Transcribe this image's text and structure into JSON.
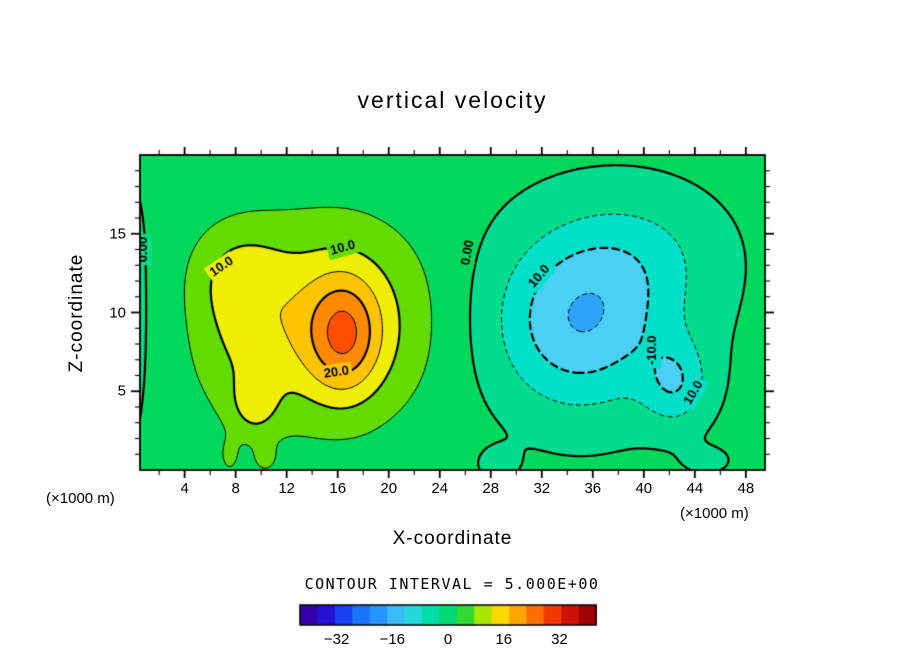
{
  "chart_data": {
    "type": "heatmap",
    "plot_style": "filled contour plot with solid positive / dashed negative contour lines",
    "title": "vertical velocity",
    "xlabel": "X-coordinate",
    "ylabel": "Z-coordinate",
    "x_units_label": "(×1000 m)",
    "y_units_label": "(×1000 m)",
    "contour_interval_label": "CONTOUR INTERVAL = 5.000E+00",
    "contour_interval": 5,
    "xlim": [
      0.5,
      49.5
    ],
    "ylim": [
      0,
      20
    ],
    "x_ticks": [
      4,
      8,
      12,
      16,
      20,
      24,
      28,
      32,
      36,
      40,
      44,
      48
    ],
    "y_ticks": [
      5,
      10,
      15
    ],
    "x_minor_step": 2,
    "y_minor_step": 1,
    "grid": false,
    "legend_position": "bottom colorbar",
    "contour_levels": [
      -20,
      -15,
      -10,
      -5,
      0,
      5,
      10,
      15,
      20,
      25
    ],
    "thick_level_multiple": 10,
    "contour_labels": [
      {
        "text": "0.00",
        "x": 0.75,
        "z": 14.0,
        "rot": -90
      },
      {
        "text": "10.0",
        "x": 6.9,
        "z": 12.9,
        "rot": -35
      },
      {
        "text": "10.0",
        "x": 16.4,
        "z": 14.1,
        "rot": -15
      },
      {
        "text": "0.00",
        "x": 26.2,
        "z": 13.8,
        "rot": -80
      },
      {
        "text": "20.0",
        "x": 15.9,
        "z": 6.2,
        "rot": -8
      },
      {
        "text": "10.0",
        "x": 31.8,
        "z": 12.3,
        "rot": -50
      },
      {
        "text": "-10.0",
        "x": 40.7,
        "z": 7.6,
        "rot": -90
      },
      {
        "text": "10.0",
        "x": 43.9,
        "z": 4.9,
        "rot": -60
      }
    ],
    "colorbar": {
      "min": -42.5,
      "max": 42.5,
      "band_width": 5,
      "ticks": [
        "−32",
        "−16",
        "0",
        "16",
        "32"
      ],
      "tick_values": [
        -32,
        -16,
        0,
        16,
        32
      ]
    },
    "colormap_stops": [
      [
        -42.5,
        "#38008c"
      ],
      [
        -37.5,
        "#2c00c0"
      ],
      [
        -32.5,
        "#1c24e8"
      ],
      [
        -27.5,
        "#1460ff"
      ],
      [
        -22.5,
        "#1e86ff"
      ],
      [
        -17.5,
        "#2ba4fa"
      ],
      [
        -12.5,
        "#4ad0f2"
      ],
      [
        -7.5,
        "#00e0c8"
      ],
      [
        -2.5,
        "#00dc8c"
      ],
      [
        2.5,
        "#00d85c"
      ],
      [
        7.5,
        "#62dc00"
      ],
      [
        12.5,
        "#eeee00"
      ],
      [
        17.5,
        "#ffc400"
      ],
      [
        22.5,
        "#ff8a00"
      ],
      [
        27.5,
        "#ff4e00"
      ],
      [
        32.5,
        "#e81e00"
      ],
      [
        37.5,
        "#b40404"
      ],
      [
        42.5,
        "#8c0000"
      ]
    ],
    "field_model": "w(x,z) approximated as offset plus sum of 2D gaussian bumps; updraft max ≈ +27 near (16.5,8.5), downdraft min ≈ −16 near (35,9.5)",
    "field": {
      "offset": 1.5,
      "blobs": [
        {
          "amp": 14,
          "x": 16.5,
          "z": 8.5,
          "sx": 2.0,
          "sz": 2.6
        },
        {
          "amp": 12,
          "x": 15.5,
          "z": 9.5,
          "sx": 5.5,
          "sz": 4.5
        },
        {
          "amp": 5,
          "x": 8.5,
          "z": 8.5,
          "sx": 3.0,
          "sz": 4.0
        },
        {
          "amp": 7,
          "x": 9.5,
          "z": 4.2,
          "sx": 1.2,
          "sz": 1.3
        },
        {
          "amp": 5,
          "x": 8.0,
          "z": 12.5,
          "sx": 2.5,
          "sz": 2.2
        },
        {
          "amp": -4,
          "x": -1.5,
          "z": 10.0,
          "sx": 2.2,
          "sz": 7.0
        },
        {
          "amp": -10,
          "x": 34.5,
          "z": 9.0,
          "sx": 4.5,
          "sz": 3.8
        },
        {
          "amp": -7,
          "x": 36.5,
          "z": 10.5,
          "sx": 5.5,
          "sz": 4.2
        },
        {
          "amp": -9,
          "x": 42.5,
          "z": 5.5,
          "sx": 1.8,
          "sz": 1.9
        },
        {
          "amp": -4,
          "x": 40.0,
          "z": 14.0,
          "sx": 4.5,
          "sz": 2.8
        },
        {
          "amp": 3,
          "x": 7.5,
          "z": 0.8,
          "sx": 0.6,
          "sz": 0.9
        },
        {
          "amp": 3,
          "x": 10.3,
          "z": 0.7,
          "sx": 0.7,
          "sz": 0.7
        },
        {
          "amp": -3,
          "x": 28.5,
          "z": 0.4,
          "sx": 1.2,
          "sz": 0.8
        },
        {
          "amp": -2.5,
          "x": 45.0,
          "z": 0.6,
          "sx": 1.5,
          "sz": 0.7
        }
      ]
    }
  }
}
